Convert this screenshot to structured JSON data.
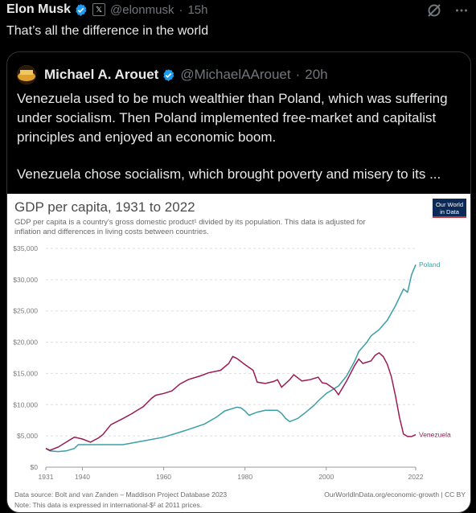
{
  "tweet": {
    "author_name": "Elon Musk",
    "handle": "@elonmusk",
    "time": "15h",
    "text": "That’s all the difference in the world"
  },
  "quoted": {
    "author_name": "Michael A. Arouet",
    "handle": "@MichaelAArouet",
    "time": "20h",
    "paragraph1": "Venezuela used to be much wealthier than Poland, which was suffering under socialism. Then Poland implemented free-market and capitalist principles and enjoyed an economic boom.",
    "paragraph2": "Venezuela chose socialism, which brought poverty and misery to its ..."
  },
  "icons": {
    "verified": "verified-badge-icon",
    "x_logo": "x-logo-icon",
    "grok": "grok-icon",
    "more": "more-options-icon"
  },
  "colors": {
    "poland": "#3a9fa6",
    "venezuela": "#9b1b55",
    "verified": "#1d9bf0",
    "owid_box": "#0b2a57"
  },
  "chart_data": {
    "type": "line",
    "title": "GDP per capita, 1931 to 2022",
    "subtitle": "GDP per capita is a country's gross domestic product¹ divided by its population. This data is adjusted for inflation and differences in living costs between countries.",
    "logo_line1": "Our World",
    "logo_line2": "in Data",
    "source": "Data source: Bolt and van Zanden – Maddison Project Database 2023",
    "note": "Note: This data is expressed in international-$² at 2011 prices.",
    "site": "OurWorldInData.org/economic-growth | CC BY",
    "xlim": [
      1931,
      2022
    ],
    "ylim": [
      0,
      35000
    ],
    "x_ticks": [
      1931,
      1940,
      1960,
      1980,
      2000,
      2022
    ],
    "y_ticks": [
      0,
      5000,
      10000,
      15000,
      20000,
      25000,
      30000,
      35000
    ],
    "y_tick_labels": [
      "$0",
      "$5,000",
      "$10,000",
      "$15,000",
      "$20,000",
      "$25,000",
      "$30,000",
      "$35,000"
    ],
    "grid": true,
    "series": [
      {
        "name": "Poland",
        "points": [
          [
            1931,
            3000
          ],
          [
            1932,
            2600
          ],
          [
            1934,
            2500
          ],
          [
            1936,
            2600
          ],
          [
            1938,
            3000
          ],
          [
            1939,
            3600
          ],
          [
            1950,
            3600
          ],
          [
            1955,
            4200
          ],
          [
            1960,
            4800
          ],
          [
            1965,
            5800
          ],
          [
            1970,
            6900
          ],
          [
            1973,
            8000
          ],
          [
            1975,
            9000
          ],
          [
            1978,
            9600
          ],
          [
            1979,
            9500
          ],
          [
            1980,
            9000
          ],
          [
            1981,
            8300
          ],
          [
            1983,
            8800
          ],
          [
            1985,
            9100
          ],
          [
            1988,
            9100
          ],
          [
            1989,
            8600
          ],
          [
            1990,
            7800
          ],
          [
            1991,
            7300
          ],
          [
            1993,
            7800
          ],
          [
            1995,
            8800
          ],
          [
            1997,
            9900
          ],
          [
            1998,
            10600
          ],
          [
            2000,
            11800
          ],
          [
            2003,
            13000
          ],
          [
            2005,
            14600
          ],
          [
            2007,
            17000
          ],
          [
            2008,
            18500
          ],
          [
            2010,
            20000
          ],
          [
            2011,
            21000
          ],
          [
            2013,
            22000
          ],
          [
            2015,
            23500
          ],
          [
            2017,
            25800
          ],
          [
            2019,
            28500
          ],
          [
            2020,
            28000
          ],
          [
            2021,
            30800
          ],
          [
            2022,
            32400
          ]
        ]
      },
      {
        "name": "Venezuela",
        "points": [
          [
            1931,
            3000
          ],
          [
            1932,
            2700
          ],
          [
            1934,
            3200
          ],
          [
            1936,
            4000
          ],
          [
            1938,
            4800
          ],
          [
            1940,
            4500
          ],
          [
            1942,
            4000
          ],
          [
            1944,
            4700
          ],
          [
            1945,
            5200
          ],
          [
            1947,
            6800
          ],
          [
            1950,
            7800
          ],
          [
            1952,
            8500
          ],
          [
            1955,
            9700
          ],
          [
            1957,
            11000
          ],
          [
            1958,
            11500
          ],
          [
            1960,
            11800
          ],
          [
            1962,
            12200
          ],
          [
            1964,
            13300
          ],
          [
            1966,
            14000
          ],
          [
            1969,
            14600
          ],
          [
            1971,
            15100
          ],
          [
            1974,
            15500
          ],
          [
            1976,
            16600
          ],
          [
            1977,
            17700
          ],
          [
            1978,
            17400
          ],
          [
            1980,
            16400
          ],
          [
            1982,
            15500
          ],
          [
            1983,
            13600
          ],
          [
            1985,
            13400
          ],
          [
            1987,
            13700
          ],
          [
            1988,
            14000
          ],
          [
            1989,
            12800
          ],
          [
            1991,
            14000
          ],
          [
            1992,
            14800
          ],
          [
            1994,
            13800
          ],
          [
            1996,
            14000
          ],
          [
            1998,
            14400
          ],
          [
            1999,
            13500
          ],
          [
            2000,
            13400
          ],
          [
            2002,
            12500
          ],
          [
            2003,
            11600
          ],
          [
            2005,
            13800
          ],
          [
            2007,
            16300
          ],
          [
            2008,
            17300
          ],
          [
            2009,
            16600
          ],
          [
            2011,
            17000
          ],
          [
            2012,
            17900
          ],
          [
            2013,
            18300
          ],
          [
            2014,
            17700
          ],
          [
            2015,
            16500
          ],
          [
            2016,
            14500
          ],
          [
            2017,
            11500
          ],
          [
            2018,
            8000
          ],
          [
            2019,
            5300
          ],
          [
            2020,
            4900
          ],
          [
            2021,
            4900
          ],
          [
            2022,
            5200
          ]
        ]
      }
    ]
  }
}
